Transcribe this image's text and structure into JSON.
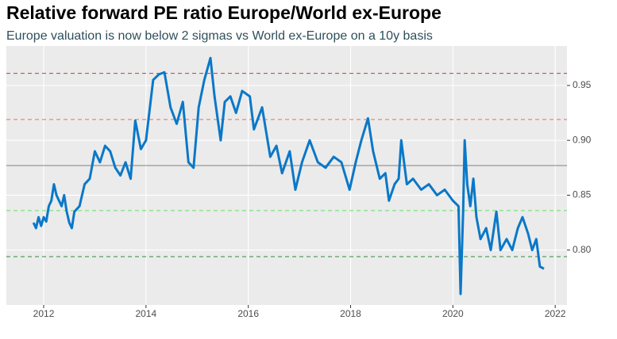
{
  "chart_data": {
    "type": "line",
    "title": "Relative forward PE ratio Europe/World ex-Europe",
    "subtitle": "Europe valuation is now below 2 sigmas vs World ex-Europe on a 10y basis",
    "xlim": [
      2011.27,
      2022.23
    ],
    "xticks": [
      2012,
      2014,
      2016,
      2018,
      2020,
      2022
    ],
    "ylim": [
      0.75,
      0.986
    ],
    "yticks": [
      {
        "value": 0.8,
        "label": "0.80"
      },
      0.85,
      {
        "value": 0.9,
        "label": "0.90"
      },
      0.95
    ],
    "grid": true,
    "reference_lines": [
      {
        "value": 0.961,
        "color": "#b5403a",
        "dash": true
      },
      {
        "value": 0.919,
        "color": "#ee6a5e",
        "dash": true
      },
      {
        "value": 0.877,
        "color": "#808080",
        "dash": false
      },
      {
        "value": 0.836,
        "color": "#66e066",
        "dash": true
      },
      {
        "value": 0.794,
        "color": "#2e8b3e",
        "dash": true
      }
    ],
    "series": [
      {
        "color": "#0a78c8",
        "x": [
          2011.8,
          2011.85,
          2011.9,
          2011.95,
          2012.0,
          2012.05,
          2012.1,
          2012.15,
          2012.2,
          2012.25,
          2012.3,
          2012.35,
          2012.4,
          2012.45,
          2012.5,
          2012.55,
          2012.6,
          2012.7,
          2012.8,
          2012.9,
          2013.0,
          2013.1,
          2013.2,
          2013.3,
          2013.4,
          2013.5,
          2013.6,
          2013.7,
          2013.79,
          2013.9,
          2014.0,
          2014.14,
          2014.25,
          2014.36,
          2014.48,
          2014.6,
          2014.72,
          2014.83,
          2014.93,
          2015.03,
          2015.14,
          2015.26,
          2015.34,
          2015.46,
          2015.54,
          2015.65,
          2015.76,
          2015.88,
          2016.03,
          2016.11,
          2016.27,
          2016.43,
          2016.55,
          2016.66,
          2016.81,
          2016.92,
          2017.05,
          2017.2,
          2017.36,
          2017.51,
          2017.67,
          2017.82,
          2017.98,
          2018.1,
          2018.21,
          2018.34,
          2018.44,
          2018.57,
          2018.68,
          2018.75,
          2018.86,
          2018.94,
          2018.99,
          2019.1,
          2019.22,
          2019.38,
          2019.53,
          2019.69,
          2019.84,
          2020.0,
          2020.11,
          2020.15,
          2020.2,
          2020.23,
          2020.28,
          2020.34,
          2020.4,
          2020.46,
          2020.54,
          2020.65,
          2020.74,
          2020.85,
          2020.93,
          2021.05,
          2021.16,
          2021.27,
          2021.36,
          2021.47,
          2021.55,
          2021.63,
          2021.7,
          2021.78
        ],
        "values": [
          0.825,
          0.82,
          0.83,
          0.822,
          0.83,
          0.826,
          0.84,
          0.845,
          0.86,
          0.85,
          0.845,
          0.84,
          0.85,
          0.835,
          0.825,
          0.82,
          0.835,
          0.84,
          0.86,
          0.865,
          0.89,
          0.88,
          0.895,
          0.89,
          0.875,
          0.868,
          0.88,
          0.865,
          0.918,
          0.892,
          0.9,
          0.955,
          0.96,
          0.962,
          0.93,
          0.915,
          0.935,
          0.88,
          0.875,
          0.93,
          0.955,
          0.975,
          0.94,
          0.9,
          0.935,
          0.94,
          0.925,
          0.945,
          0.94,
          0.91,
          0.93,
          0.885,
          0.895,
          0.87,
          0.89,
          0.855,
          0.88,
          0.9,
          0.88,
          0.875,
          0.885,
          0.88,
          0.855,
          0.88,
          0.9,
          0.92,
          0.89,
          0.865,
          0.87,
          0.845,
          0.86,
          0.865,
          0.9,
          0.86,
          0.865,
          0.855,
          0.86,
          0.85,
          0.855,
          0.845,
          0.84,
          0.76,
          0.835,
          0.9,
          0.86,
          0.84,
          0.865,
          0.83,
          0.81,
          0.82,
          0.8,
          0.835,
          0.8,
          0.81,
          0.8,
          0.82,
          0.83,
          0.815,
          0.8,
          0.81,
          0.785,
          0.783
        ]
      }
    ]
  }
}
